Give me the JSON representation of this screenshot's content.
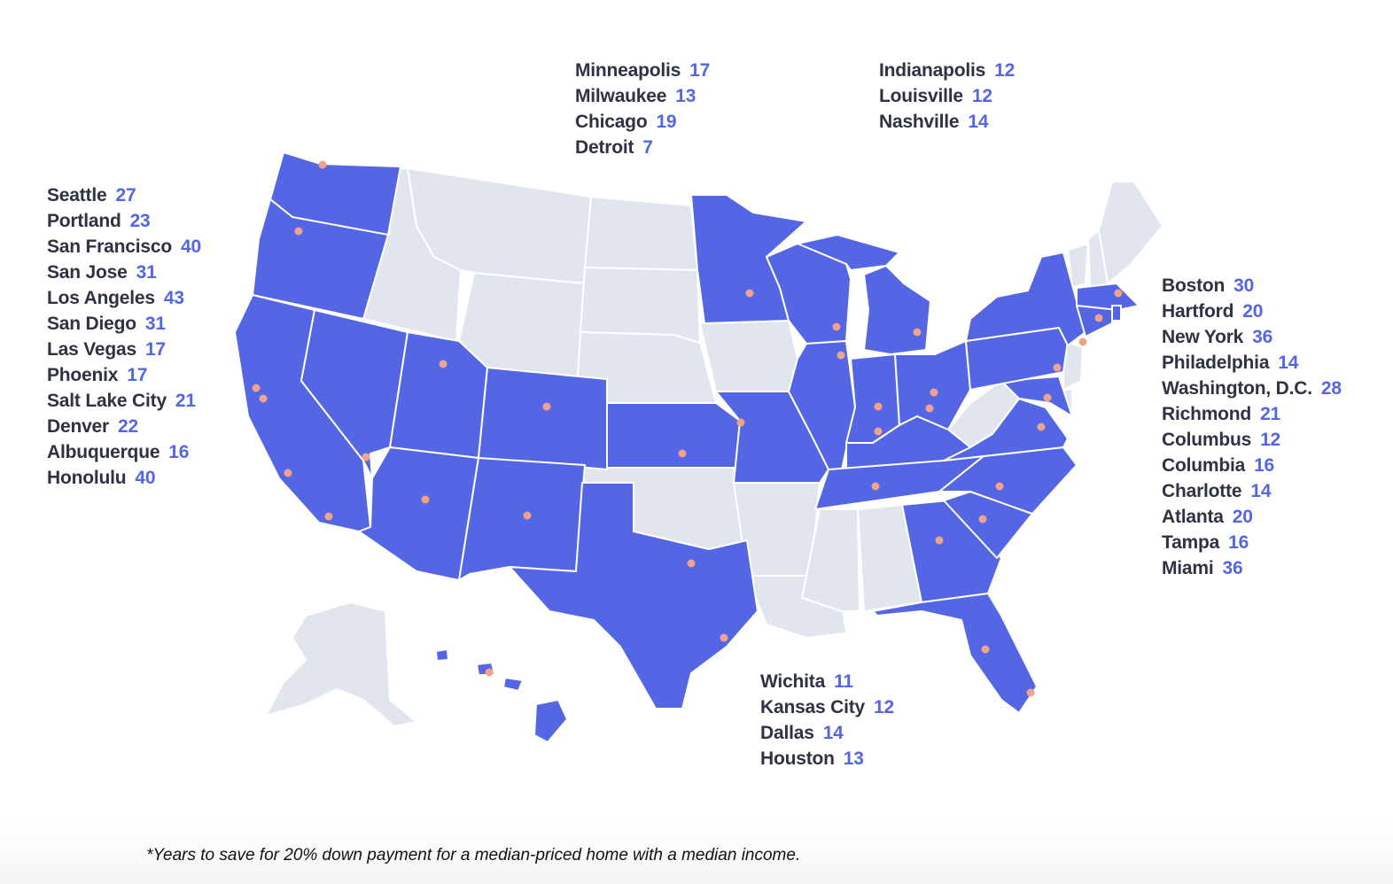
{
  "colors": {
    "highlight": "#5466e3",
    "non_highlight": "#e1e6ee",
    "dot": "#eda38d",
    "number": "#5466e3",
    "label": "#2e3242"
  },
  "groups": {
    "west": [
      {
        "city": "Seattle",
        "years": "27"
      },
      {
        "city": "Portland",
        "years": "23"
      },
      {
        "city": "San Francisco",
        "years": "40"
      },
      {
        "city": "San Jose",
        "years": "31"
      },
      {
        "city": "Los Angeles",
        "years": "43"
      },
      {
        "city": "San Diego",
        "years": "31"
      },
      {
        "city": "Las Vegas",
        "years": "17"
      },
      {
        "city": "Phoenix",
        "years": "17"
      },
      {
        "city": "Salt Lake City",
        "years": "21"
      },
      {
        "city": "Denver",
        "years": "22"
      },
      {
        "city": "Albuquerque",
        "years": "16"
      },
      {
        "city": "Honolulu",
        "years": "40"
      }
    ],
    "midwest": [
      {
        "city": "Minneapolis",
        "years": "17"
      },
      {
        "city": "Milwaukee",
        "years": "13"
      },
      {
        "city": "Chicago",
        "years": "19"
      },
      {
        "city": "Detroit",
        "years": "7"
      }
    ],
    "central": [
      {
        "city": "Indianapolis",
        "years": "12"
      },
      {
        "city": "Louisville",
        "years": "12"
      },
      {
        "city": "Nashville",
        "years": "14"
      }
    ],
    "east": [
      {
        "city": "Boston",
        "years": "30"
      },
      {
        "city": "Hartford",
        "years": "20"
      },
      {
        "city": "New York",
        "years": "36"
      },
      {
        "city": "Philadelphia",
        "years": "14"
      },
      {
        "city": "Washington, D.C.",
        "years": "28"
      },
      {
        "city": "Richmond",
        "years": "21"
      },
      {
        "city": "Columbus",
        "years": "12"
      },
      {
        "city": "Columbia",
        "years": "16"
      },
      {
        "city": "Charlotte",
        "years": "14"
      },
      {
        "city": "Atlanta",
        "years": "20"
      },
      {
        "city": "Tampa",
        "years": "16"
      },
      {
        "city": "Miami",
        "years": "36"
      }
    ],
    "south": [
      {
        "city": "Wichita",
        "years": "11"
      },
      {
        "city": "Kansas City",
        "years": "12"
      },
      {
        "city": "Dallas",
        "years": "14"
      },
      {
        "city": "Houston",
        "years": "13"
      }
    ]
  },
  "footnote": "*Years to save for 20% down payment for a median-priced home with a median income."
}
